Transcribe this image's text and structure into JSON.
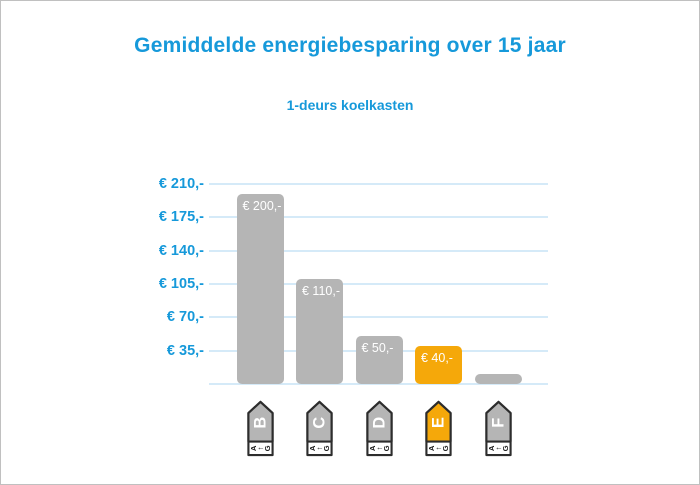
{
  "header": {
    "title": "Gemiddelde energiebesparing over 15 jaar",
    "subtitle": "1-deurs koelkasten"
  },
  "colors": {
    "accent_blue": "#1699DA",
    "gridline_blue": "#D5EAF8",
    "bar_gray": "#B5B5B5",
    "bar_orange": "#F5A80A",
    "tag_outline": "#2D2D2D",
    "tag_small_text": "#1A1A1A",
    "bar_label_text": "#FFFFFF"
  },
  "chart_data": {
    "type": "bar",
    "title": "Gemiddelde energiebesparing over 15 jaar",
    "subtitle": "1-deurs koelkasten",
    "categories": [
      "B",
      "C",
      "D",
      "E",
      "F"
    ],
    "values": [
      200,
      110,
      50,
      40,
      10
    ],
    "bar_value_labels": [
      "€ 200,-",
      "€ 110,-",
      "€ 50,-",
      "€ 40,-",
      ""
    ],
    "highlighted_category": "E",
    "y_ticks": [
      {
        "value": 210,
        "label": "€ 210,-"
      },
      {
        "value": 175,
        "label": "€ 175,-"
      },
      {
        "value": 140,
        "label": "€ 140,-"
      },
      {
        "value": 105,
        "label": "€ 105,-"
      },
      {
        "value": 70,
        "label": "€ 70,-"
      },
      {
        "value": 35,
        "label": "€ 35,-"
      },
      {
        "value": 0,
        "label": ""
      }
    ],
    "ylim": [
      0,
      210
    ],
    "currency": "EUR",
    "grid": true,
    "legend": "none",
    "x_axis_marker": "eu-energy-label-tag",
    "tag_scale_glyphs": [
      "A",
      "↑",
      "G"
    ]
  }
}
